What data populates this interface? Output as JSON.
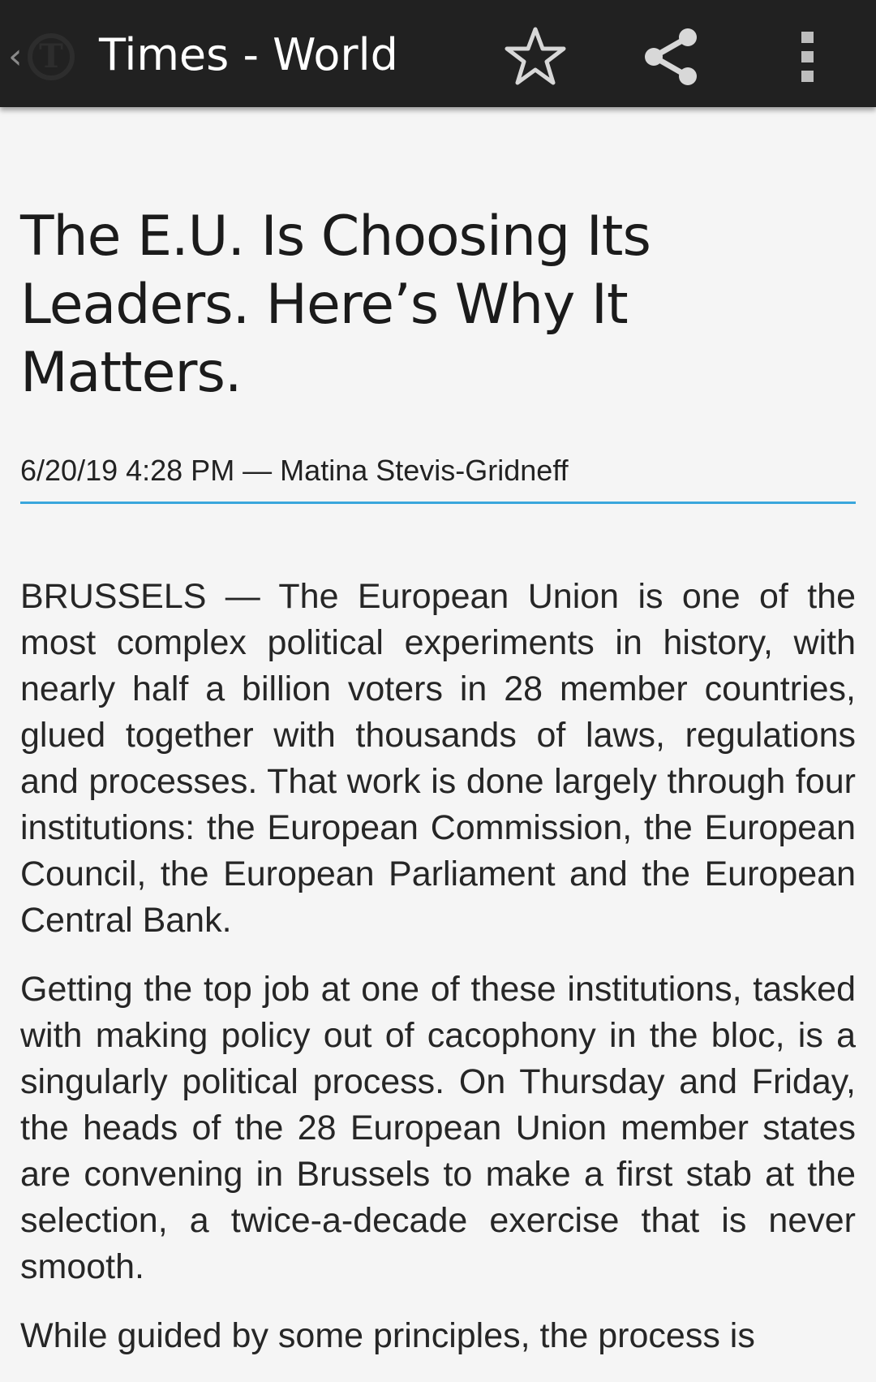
{
  "appbar": {
    "back_icon": "chevron-left-icon",
    "logo_icon": "nyt-logo-icon",
    "title": "Times - World",
    "actions": [
      {
        "name": "star-icon"
      },
      {
        "name": "share-icon"
      },
      {
        "name": "more-vertical-icon"
      }
    ],
    "background": "#212121"
  },
  "article": {
    "headline": "The E.U. Is Choosing Its Leaders. Here’s Why It Matters.",
    "meta": "6/20/19 4:28 PM — Matina Stevis-Gridneff",
    "divider_color": "#3aa6dc",
    "paragraphs": [
      "BRUSSELS — The European Union is one of the most complex political experiments in history, with nearly half a billion voters in 28 member countries, glued together with thousands of laws, regulations and processes. That work is done largely through four institutions: the European Commission, the European Council, the European Parliament and the European Central Bank.",
      "Getting the top job at one of these institutions, tasked with making policy out of cacophony in the bloc, is a singularly political process. On Thursday and Friday, the heads of the 28 European Union member states are convening in Brussels to make a first stab at the selection, a twice-a-decade exercise that is never smooth.",
      "While guided by some principles, the process is"
    ]
  }
}
